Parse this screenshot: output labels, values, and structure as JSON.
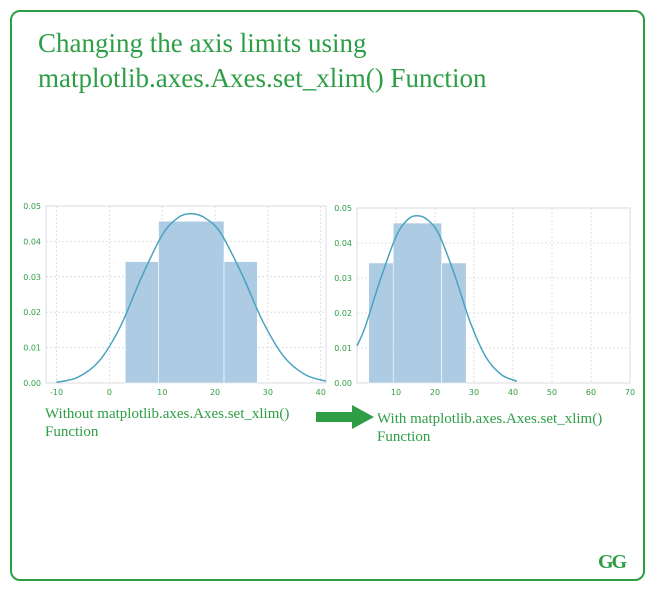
{
  "title": {
    "line1": "Changing the axis limits using",
    "line2": "matplotlib.axes.Axes.set_xlim() Function"
  },
  "captions": {
    "left_line1": "Without matplotlib.axes.Axes.set_xlim()",
    "left_line2": "Function",
    "right_line1": "With matplotlib.axes.Axes.set_xlim()",
    "right_line2": "Function"
  },
  "logo_text": "GG",
  "colors": {
    "accent": "#2e9e46",
    "bar": "#a9c9e2",
    "kde": "#4aa3c0",
    "tick": "#2e9e46",
    "grid": "#d8d8d8"
  },
  "chart_data": [
    {
      "type": "bar",
      "title": "",
      "xlabel": "",
      "ylabel": "",
      "xlim": [
        -12,
        41
      ],
      "ylim": [
        0,
        0.05
      ],
      "xticks": [
        -10,
        0,
        10,
        20,
        30,
        40
      ],
      "yticks": [
        0.0,
        0.01,
        0.02,
        0.03,
        0.04,
        0.05
      ],
      "ytick_labels": [
        "0.00",
        "0.01",
        "0.02",
        "0.03",
        "0.04",
        "0.05"
      ],
      "grid": true,
      "bins": [
        {
          "x0": 3,
          "x1": 9.3,
          "value": 0.0343
        },
        {
          "x0": 9.3,
          "x1": 21.7,
          "value": 0.0457
        },
        {
          "x0": 21.7,
          "x1": 28,
          "value": 0.0343
        }
      ],
      "kde": {
        "x": [
          -10,
          -6,
          -2,
          2,
          6,
          10,
          13,
          15.5,
          18,
          21,
          25,
          29,
          33,
          37,
          41
        ],
        "y": [
          0.0002,
          0.0016,
          0.0061,
          0.0157,
          0.0296,
          0.0418,
          0.0467,
          0.0478,
          0.0467,
          0.0425,
          0.031,
          0.0175,
          0.0075,
          0.0024,
          0.0005
        ]
      }
    },
    {
      "type": "bar",
      "title": "",
      "xlabel": "",
      "ylabel": "",
      "xlim": [
        0,
        70
      ],
      "ylim": [
        0,
        0.05
      ],
      "xticks": [
        10,
        20,
        30,
        40,
        50,
        60,
        70
      ],
      "yticks": [
        0.0,
        0.01,
        0.02,
        0.03,
        0.04,
        0.05
      ],
      "ytick_labels": [
        "0.00",
        "0.01",
        "0.02",
        "0.03",
        "0.04",
        "0.05"
      ],
      "grid": true,
      "bins": [
        {
          "x0": 3,
          "x1": 9.3,
          "value": 0.0343
        },
        {
          "x0": 9.3,
          "x1": 21.7,
          "value": 0.0457
        },
        {
          "x0": 21.7,
          "x1": 28,
          "value": 0.0343
        }
      ],
      "kde": {
        "x": [
          0,
          2,
          6,
          10,
          13,
          15.5,
          18,
          21,
          25,
          29,
          33,
          37,
          41
        ],
        "y": [
          0.0106,
          0.0157,
          0.0296,
          0.0418,
          0.0467,
          0.0478,
          0.0467,
          0.0425,
          0.031,
          0.0175,
          0.0075,
          0.0024,
          0.0005
        ]
      }
    }
  ]
}
